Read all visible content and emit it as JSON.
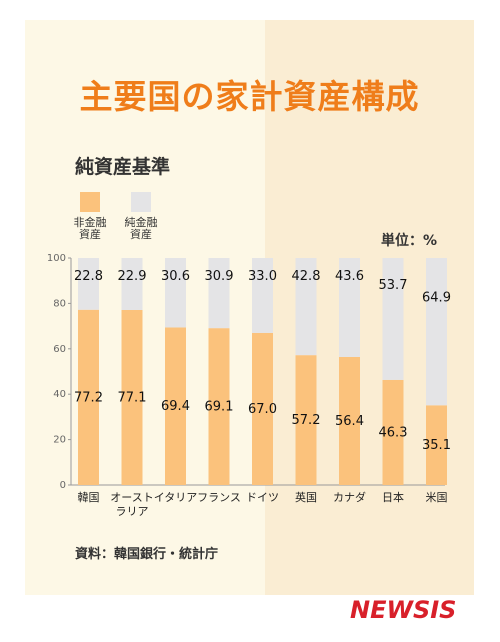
{
  "title": "主要国の家計資産構成",
  "subtitle": "純資産基準",
  "legend": [
    {
      "label_line1": "非金融",
      "label_line2": "資産",
      "color": "#fbc27c"
    },
    {
      "label_line1": "純金融",
      "label_line2": "資産",
      "color": "#e4e4e6"
    }
  ],
  "unit_label": "単位：%",
  "source": "資料：韓国銀行・統計庁",
  "logo": "NEWSIS",
  "chart_data": {
    "type": "bar",
    "stacked": true,
    "categories": [
      {
        "line1": "韓国",
        "line2": ""
      },
      {
        "line1": "オースト",
        "line2": "ラリア"
      },
      {
        "line1": "イタリア",
        "line2": ""
      },
      {
        "line1": "フランス",
        "line2": ""
      },
      {
        "line1": "ドイツ",
        "line2": ""
      },
      {
        "line1": "英国",
        "line2": ""
      },
      {
        "line1": "カナダ",
        "line2": ""
      },
      {
        "line1": "日本",
        "line2": ""
      },
      {
        "line1": "米国",
        "line2": ""
      }
    ],
    "series": [
      {
        "name": "非金融資産",
        "color": "#fbc27c",
        "values": [
          77.2,
          77.1,
          69.4,
          69.1,
          67.0,
          57.2,
          56.4,
          46.3,
          35.1
        ]
      },
      {
        "name": "純金融資産",
        "color": "#e4e4e6",
        "values": [
          22.8,
          22.9,
          30.6,
          30.9,
          33.0,
          42.8,
          43.6,
          53.7,
          64.9
        ]
      }
    ],
    "value_labels_bottom": [
      "77.2",
      "77.1",
      "69.4",
      "69.1",
      "67.0",
      "57.2",
      "56.4",
      "46.3",
      "35.1"
    ],
    "value_labels_top": [
      "22.8",
      "22.9",
      "30.6",
      "30.9",
      "33.0",
      "42.8",
      "43.6",
      "53.7",
      "64.9"
    ],
    "yticks": [
      "0",
      "20",
      "40",
      "60",
      "80",
      "100"
    ],
    "ylim": [
      0,
      100
    ],
    "grid": false
  }
}
